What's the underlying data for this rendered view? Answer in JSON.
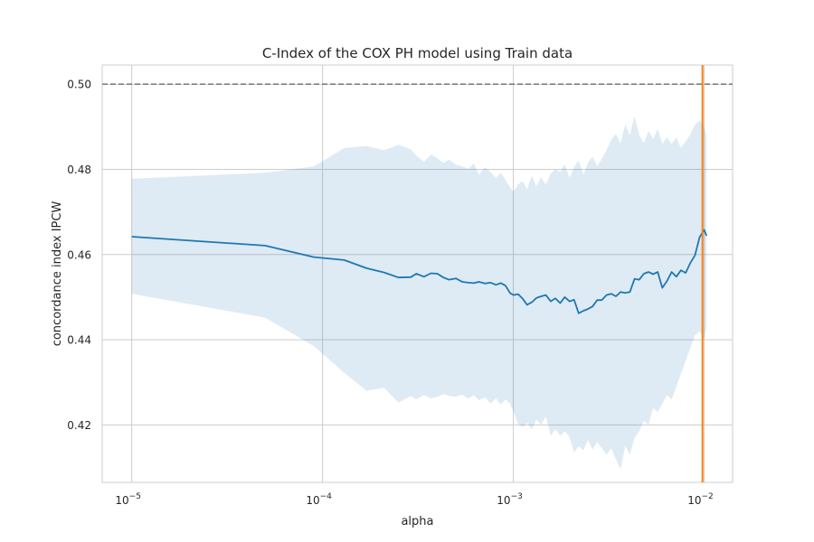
{
  "chart_data": {
    "type": "line",
    "title": "C-Index of the COX PH model using Train data",
    "xlabel": "alpha",
    "ylabel": "concordance index IPCW",
    "x_scale": "log",
    "xlim": [
      7e-06,
      0.0141
    ],
    "ylim": [
      0.4065,
      0.5045
    ],
    "grid": true,
    "x_ticks": [
      {
        "value": 1e-05,
        "base": "10",
        "exp": "−5"
      },
      {
        "value": 0.0001,
        "base": "10",
        "exp": "−4"
      },
      {
        "value": 0.001,
        "base": "10",
        "exp": "−3"
      },
      {
        "value": 0.01,
        "base": "10",
        "exp": "−2"
      }
    ],
    "y_ticks": [
      "0.42",
      "0.44",
      "0.46",
      "0.48",
      "0.50"
    ],
    "reference_line": {
      "y": 0.5,
      "style": "dashed",
      "color": "#808080"
    },
    "vertical_line": {
      "x": 0.0098,
      "color": "#ff7f0e"
    },
    "colors": {
      "line": "#1f77b4",
      "band": "#1f77b4",
      "grid": "#cccccc",
      "axes": "#cccccc",
      "text": "#262626"
    },
    "series": [
      {
        "x": [
          1e-05,
          5e-05,
          9e-05,
          0.00013,
          0.00017,
          0.00021,
          0.00025,
          0.00029,
          0.00031,
          0.00034,
          0.00037,
          0.0004,
          0.00043,
          0.00046,
          0.0005,
          0.00054,
          0.00058,
          0.00062,
          0.00066,
          0.00071,
          0.00076,
          0.00081,
          0.00086,
          0.00091,
          0.00096,
          0.001,
          0.00106,
          0.00112,
          0.00118,
          0.00125,
          0.00132,
          0.0014,
          0.00148,
          0.00157,
          0.00166,
          0.00176,
          0.00186,
          0.00197,
          0.00208,
          0.0022,
          0.00233,
          0.00246,
          0.0026,
          0.00275,
          0.00291,
          0.00308,
          0.00326,
          0.00345,
          0.00365,
          0.00386,
          0.00408,
          0.00432,
          0.00457,
          0.00483,
          0.00511,
          0.0054,
          0.00571,
          0.00604,
          0.00639,
          0.00676,
          0.00715,
          0.00756,
          0.008,
          0.00846,
          0.00895,
          0.00946,
          0.01,
          0.0103
        ],
        "y": [
          0.4642,
          0.4621,
          0.4594,
          0.4587,
          0.4568,
          0.4558,
          0.4546,
          0.4547,
          0.4555,
          0.4548,
          0.4556,
          0.4555,
          0.4546,
          0.4541,
          0.4544,
          0.4536,
          0.4534,
          0.4533,
          0.4536,
          0.4532,
          0.4534,
          0.4529,
          0.4533,
          0.4527,
          0.451,
          0.4505,
          0.4507,
          0.4496,
          0.4482,
          0.4488,
          0.4498,
          0.4502,
          0.4505,
          0.449,
          0.4497,
          0.4486,
          0.45,
          0.449,
          0.4494,
          0.4462,
          0.4468,
          0.4472,
          0.4478,
          0.4493,
          0.4493,
          0.4505,
          0.4508,
          0.4502,
          0.4512,
          0.451,
          0.4512,
          0.4543,
          0.4541,
          0.4555,
          0.4559,
          0.4554,
          0.4559,
          0.4522,
          0.4538,
          0.4559,
          0.4548,
          0.4563,
          0.4557,
          0.458,
          0.4598,
          0.464,
          0.4658,
          0.4644
        ],
        "upper": [
          0.4778,
          0.4792,
          0.4807,
          0.485,
          0.4855,
          0.4845,
          0.4858,
          0.4847,
          0.4832,
          0.4818,
          0.4835,
          0.4826,
          0.4815,
          0.4823,
          0.4811,
          0.4807,
          0.4801,
          0.4814,
          0.4788,
          0.4805,
          0.4793,
          0.478,
          0.4792,
          0.4775,
          0.4758,
          0.4748,
          0.4765,
          0.4772,
          0.4753,
          0.4785,
          0.476,
          0.4782,
          0.4764,
          0.479,
          0.48,
          0.4794,
          0.4812,
          0.478,
          0.4805,
          0.4821,
          0.4788,
          0.4815,
          0.483,
          0.4808,
          0.4825,
          0.4845,
          0.487,
          0.4883,
          0.4862,
          0.4905,
          0.488,
          0.4925,
          0.488,
          0.4862,
          0.489,
          0.4872,
          0.4895,
          0.486,
          0.4876,
          0.486,
          0.4875,
          0.485,
          0.4866,
          0.4882,
          0.4905,
          0.4915,
          0.49,
          0.488
        ],
        "lower": [
          0.4508,
          0.4452,
          0.4385,
          0.4322,
          0.428,
          0.4287,
          0.4252,
          0.4268,
          0.426,
          0.427,
          0.4262,
          0.4266,
          0.4272,
          0.4268,
          0.4266,
          0.4271,
          0.4262,
          0.427,
          0.4258,
          0.4265,
          0.425,
          0.4262,
          0.4248,
          0.426,
          0.425,
          0.4232,
          0.4202,
          0.4195,
          0.4205,
          0.419,
          0.4212,
          0.42,
          0.422,
          0.4175,
          0.419,
          0.4175,
          0.4185,
          0.4172,
          0.4135,
          0.415,
          0.414,
          0.4165,
          0.4142,
          0.416,
          0.4145,
          0.413,
          0.4145,
          0.412,
          0.4095,
          0.415,
          0.413,
          0.417,
          0.4185,
          0.421,
          0.42,
          0.424,
          0.423,
          0.425,
          0.427,
          0.426,
          0.429,
          0.432,
          0.435,
          0.438,
          0.441,
          0.442,
          0.44,
          0.443
        ]
      }
    ]
  }
}
